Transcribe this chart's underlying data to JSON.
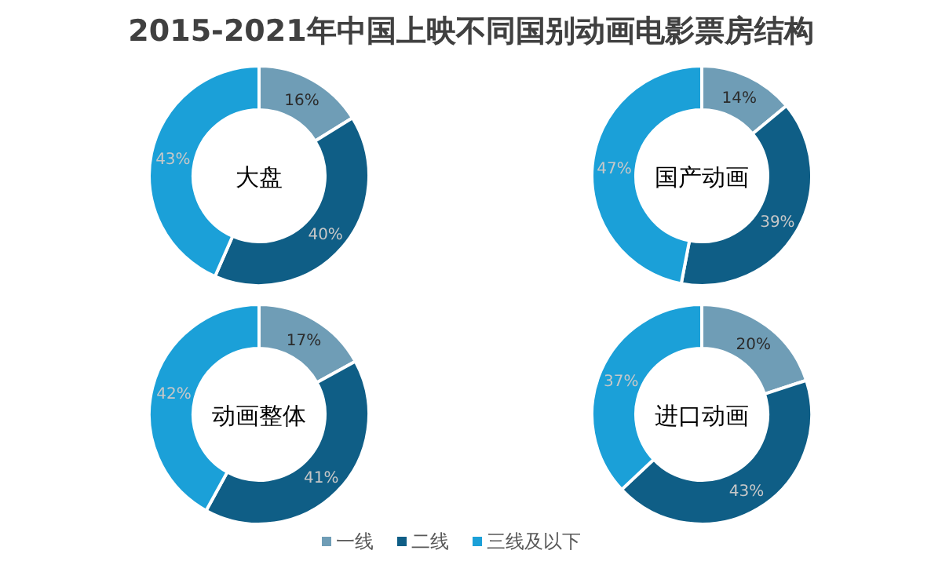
{
  "chart_data": [
    {
      "type": "donut",
      "title": "2015-2021年中国上映不同国别动画电影票房结构",
      "annotations": [
        "大盘"
      ],
      "categories": [
        "一线",
        "二线",
        "三线及以下"
      ],
      "values": [
        16,
        40,
        43
      ],
      "colors": [
        "#6f9db6",
        "#0f5e86",
        "#1ba0d8"
      ],
      "value_labels": [
        "16%",
        "40%",
        "43%"
      ],
      "legend": "bottom"
    },
    {
      "type": "donut",
      "annotations": [
        "国产动画"
      ],
      "categories": [
        null,
        null,
        null
      ],
      "values": [
        14,
        39,
        47
      ],
      "colors": [
        "#6f9db6",
        "#0f5e86",
        "#1ba0d8"
      ],
      "value_labels": [
        "14%",
        "39%",
        "47%"
      ]
    },
    {
      "type": "donut",
      "annotations": [
        "动画整体"
      ],
      "categories": [
        null,
        null,
        null
      ],
      "values": [
        17,
        41,
        42
      ],
      "colors": [
        "#6f9db6",
        "#0f5e86",
        "#1ba0d8"
      ],
      "value_labels": [
        "17%",
        "41%",
        "42%"
      ]
    },
    {
      "type": "donut",
      "annotations": [
        "进口动画"
      ],
      "categories": [
        null,
        null,
        null
      ],
      "values": [
        20,
        43,
        37
      ],
      "colors": [
        "#6f9db6",
        "#0f5e86",
        "#1ba0d8"
      ],
      "value_labels": [
        "20%",
        "43%",
        "37%"
      ]
    }
  ]
}
